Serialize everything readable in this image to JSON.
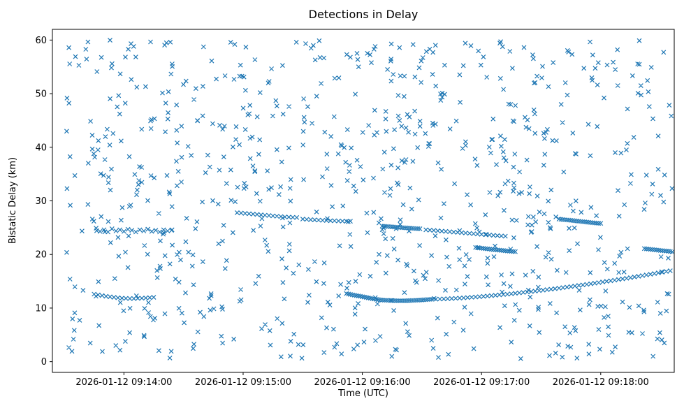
{
  "chart_data": {
    "type": "scatter",
    "title": "Detections in Delay",
    "xlabel": "Time (UTC)",
    "ylabel": "Bistatic Delay (km)",
    "marker": "x",
    "marker_color": "#1f77b4",
    "legend": "none",
    "grid": false,
    "x_axis": {
      "unit": "seconds after 2026-01-12 09:13:00 UTC",
      "lim": [
        24,
        337
      ],
      "ticks": [
        60,
        120,
        180,
        240,
        300
      ],
      "tick_labels": [
        "2026-01-12 09:14:00",
        "2026-01-12 09:15:00",
        "2026-01-12 09:16:00",
        "2026-01-12 09:17:00",
        "2026-01-12 09:18:00"
      ]
    },
    "y_axis": {
      "lim": [
        -2,
        62
      ],
      "ticks": [
        0,
        10,
        20,
        30,
        40,
        50,
        60
      ],
      "tick_labels": [
        "0",
        "10",
        "20",
        "30",
        "40",
        "50",
        "60"
      ]
    },
    "noise": {
      "description": "uniform random clutter detections across the full plot",
      "count": 850,
      "x_range": [
        31,
        336
      ],
      "y_range": [
        0.5,
        60
      ],
      "seed": 7
    },
    "tracks": [
      {
        "name": "track-1",
        "points": [
          [
            45,
            12.6
          ],
          [
            47,
            12.45
          ],
          [
            49,
            12.32
          ],
          [
            51,
            12.2
          ],
          [
            53,
            12.1
          ],
          [
            55,
            12.0
          ],
          [
            57,
            11.92
          ],
          [
            59,
            11.85
          ],
          [
            61,
            11.8
          ],
          [
            63,
            11.78
          ],
          [
            65,
            11.78
          ],
          [
            67,
            11.8
          ],
          [
            69,
            11.84
          ],
          [
            71,
            11.89
          ],
          [
            73,
            11.94
          ],
          [
            75,
            12.0
          ]
        ]
      },
      {
        "name": "cluster-1",
        "points": [
          [
            46,
            24.9
          ],
          [
            48,
            24.3
          ],
          [
            50,
            24.6
          ],
          [
            52,
            24.2
          ],
          [
            54,
            24.8
          ],
          [
            56,
            24.4
          ],
          [
            58,
            24.6
          ],
          [
            60,
            24.3
          ],
          [
            62,
            24.7
          ],
          [
            64,
            24.5
          ],
          [
            66,
            24.2
          ],
          [
            68,
            24.6
          ],
          [
            70,
            24.4
          ],
          [
            72,
            24.7
          ],
          [
            74,
            24.3
          ],
          [
            76,
            24.5
          ],
          [
            78,
            24.2
          ],
          [
            80,
            24.6
          ],
          [
            82,
            24.4
          ],
          [
            84,
            24.5
          ]
        ]
      },
      {
        "name": "track-2",
        "points": [
          [
            117,
            27.8
          ],
          [
            119,
            27.73
          ],
          [
            121,
            27.67
          ],
          [
            123,
            27.6
          ],
          [
            125,
            27.53
          ],
          [
            127,
            27.47
          ],
          [
            129,
            27.4
          ],
          [
            131,
            27.33
          ],
          [
            133,
            27.27
          ],
          [
            135,
            27.2
          ],
          [
            137,
            27.13
          ],
          [
            139,
            27.07
          ],
          [
            141,
            27.0
          ],
          [
            143,
            26.97
          ],
          [
            145,
            26.93
          ],
          [
            147,
            26.9
          ]
        ]
      },
      {
        "name": "track-3",
        "points": [
          [
            150,
            26.6
          ],
          [
            152,
            26.55
          ],
          [
            154,
            26.5
          ],
          [
            156,
            26.46
          ],
          [
            158,
            26.42
          ],
          [
            160,
            26.38
          ],
          [
            162,
            26.34
          ],
          [
            164,
            26.3
          ],
          [
            166,
            26.28
          ],
          [
            168,
            26.25
          ],
          [
            170,
            26.22
          ],
          [
            172,
            26.2
          ],
          [
            174,
            26.2
          ]
        ]
      },
      {
        "name": "track-4",
        "points": [
          [
            190,
            25.3
          ],
          [
            191,
            25.27
          ],
          [
            192,
            25.24
          ],
          [
            193,
            25.21
          ],
          [
            194,
            25.18
          ],
          [
            195,
            25.15
          ],
          [
            196,
            25.12
          ],
          [
            197,
            25.09
          ],
          [
            198,
            25.06
          ],
          [
            199,
            25.03
          ],
          [
            200,
            25.0
          ],
          [
            201,
            24.98
          ],
          [
            202,
            24.95
          ],
          [
            203,
            24.92
          ],
          [
            204,
            24.9
          ],
          [
            205,
            24.88
          ],
          [
            206,
            24.85
          ],
          [
            207,
            24.83
          ],
          [
            208,
            24.81
          ],
          [
            209,
            24.8
          ]
        ]
      },
      {
        "name": "track-5",
        "points": [
          [
            212,
            24.6
          ],
          [
            214,
            24.54
          ],
          [
            216,
            24.48
          ],
          [
            218,
            24.42
          ],
          [
            220,
            24.36
          ],
          [
            222,
            24.3
          ],
          [
            224,
            24.24
          ],
          [
            226,
            24.18
          ],
          [
            228,
            24.12
          ],
          [
            230,
            24.06
          ],
          [
            232,
            24.0
          ],
          [
            234,
            23.94
          ],
          [
            236,
            23.88
          ],
          [
            238,
            23.82
          ],
          [
            240,
            23.76
          ],
          [
            242,
            23.7
          ],
          [
            244,
            23.64
          ],
          [
            246,
            23.58
          ],
          [
            248,
            23.52
          ],
          [
            250,
            23.46
          ],
          [
            252,
            23.4
          ]
        ]
      },
      {
        "name": "track-6",
        "points": [
          [
            237,
            21.3
          ],
          [
            238,
            21.25
          ],
          [
            239,
            21.21
          ],
          [
            240,
            21.17
          ],
          [
            241,
            21.12
          ],
          [
            242,
            21.08
          ],
          [
            243,
            21.04
          ],
          [
            244,
            21.0
          ],
          [
            245,
            20.96
          ],
          [
            246,
            20.92
          ],
          [
            247,
            20.88
          ],
          [
            248,
            20.84
          ],
          [
            249,
            20.8
          ],
          [
            250,
            20.76
          ],
          [
            251,
            20.73
          ],
          [
            252,
            20.69
          ],
          [
            253,
            20.65
          ],
          [
            254,
            20.62
          ],
          [
            255,
            20.58
          ],
          [
            256,
            20.55
          ],
          [
            257,
            20.52
          ]
        ]
      },
      {
        "name": "track-7",
        "points": [
          [
            172,
            12.7
          ],
          [
            173,
            12.62
          ],
          [
            174,
            12.55
          ],
          [
            175,
            12.47
          ],
          [
            176,
            12.4
          ],
          [
            177,
            12.33
          ],
          [
            178,
            12.26
          ],
          [
            179,
            12.19
          ],
          [
            180,
            12.12
          ],
          [
            181,
            12.05
          ],
          [
            182,
            11.98
          ],
          [
            183,
            11.91
          ],
          [
            184,
            11.84
          ],
          [
            185,
            11.77
          ],
          [
            186,
            11.7
          ],
          [
            187,
            11.64
          ],
          [
            188,
            11.58
          ],
          [
            189,
            11.53
          ],
          [
            190,
            11.5
          ],
          [
            191,
            11.47
          ],
          [
            192,
            11.45
          ],
          [
            193,
            11.43
          ],
          [
            194,
            11.41
          ],
          [
            195,
            11.4
          ],
          [
            196,
            11.39
          ],
          [
            197,
            11.38
          ],
          [
            198,
            11.38
          ],
          [
            199,
            11.37
          ],
          [
            200,
            11.37
          ],
          [
            201,
            11.37
          ],
          [
            202,
            11.38
          ],
          [
            203,
            11.39
          ],
          [
            204,
            11.4
          ],
          [
            205,
            11.41
          ],
          [
            206,
            11.43
          ],
          [
            207,
            11.45
          ],
          [
            208,
            11.47
          ],
          [
            209,
            11.49
          ],
          [
            210,
            11.51
          ],
          [
            211,
            11.54
          ],
          [
            212,
            11.56
          ],
          [
            213,
            11.59
          ],
          [
            214,
            11.62
          ],
          [
            215,
            11.65
          ],
          [
            217,
            11.66
          ],
          [
            219,
            11.68
          ],
          [
            221,
            11.71
          ],
          [
            223,
            11.74
          ],
          [
            225,
            11.78
          ],
          [
            227,
            11.82
          ],
          [
            229,
            11.86
          ],
          [
            231,
            11.91
          ],
          [
            233,
            11.96
          ],
          [
            235,
            12.01
          ],
          [
            237,
            12.07
          ],
          [
            239,
            12.12
          ],
          [
            241,
            12.18
          ],
          [
            243,
            12.25
          ],
          [
            245,
            12.31
          ],
          [
            247,
            12.38
          ],
          [
            249,
            12.45
          ],
          [
            251,
            12.52
          ],
          [
            253,
            12.59
          ],
          [
            255,
            12.67
          ],
          [
            257,
            12.75
          ],
          [
            259,
            12.83
          ],
          [
            261,
            12.91
          ],
          [
            263,
            12.99
          ],
          [
            265,
            13.08
          ],
          [
            267,
            13.16
          ],
          [
            269,
            13.25
          ],
          [
            271,
            13.34
          ],
          [
            273,
            13.43
          ],
          [
            275,
            13.52
          ],
          [
            277,
            13.62
          ],
          [
            279,
            13.71
          ],
          [
            281,
            13.81
          ],
          [
            283,
            13.91
          ],
          [
            285,
            14.01
          ],
          [
            287,
            14.11
          ],
          [
            289,
            14.22
          ],
          [
            291,
            14.32
          ],
          [
            293,
            14.43
          ],
          [
            295,
            14.53
          ],
          [
            297,
            14.64
          ],
          [
            299,
            14.75
          ],
          [
            301,
            14.87
          ],
          [
            303,
            14.98
          ],
          [
            305,
            15.09
          ],
          [
            307,
            15.21
          ],
          [
            309,
            15.32
          ],
          [
            311,
            15.44
          ],
          [
            313,
            15.56
          ],
          [
            315,
            15.68
          ],
          [
            317,
            15.8
          ],
          [
            319,
            15.93
          ],
          [
            321,
            16.05
          ],
          [
            323,
            16.18
          ],
          [
            325,
            16.3
          ],
          [
            327,
            16.43
          ],
          [
            329,
            16.56
          ],
          [
            331,
            16.69
          ],
          [
            333,
            16.82
          ],
          [
            335,
            16.95
          ]
        ]
      },
      {
        "name": "track-8",
        "points": [
          [
            279,
            26.6
          ],
          [
            280,
            26.56
          ],
          [
            281,
            26.52
          ],
          [
            282,
            26.48
          ],
          [
            283,
            26.44
          ],
          [
            284,
            26.4
          ],
          [
            285,
            26.36
          ],
          [
            286,
            26.32
          ],
          [
            287,
            26.28
          ],
          [
            288,
            26.24
          ],
          [
            289,
            26.2
          ],
          [
            290,
            26.16
          ],
          [
            291,
            26.12
          ],
          [
            292,
            26.08
          ],
          [
            293,
            26.04
          ],
          [
            294,
            26.0
          ],
          [
            295,
            25.96
          ],
          [
            296,
            25.92
          ],
          [
            297,
            25.88
          ],
          [
            298,
            25.84
          ],
          [
            299,
            25.8
          ],
          [
            300,
            25.8
          ]
        ]
      },
      {
        "name": "track-9",
        "points": [
          [
            322,
            21.1
          ],
          [
            323,
            21.05
          ],
          [
            324,
            21.0
          ],
          [
            325,
            20.96
          ],
          [
            326,
            20.92
          ],
          [
            327,
            20.88
          ],
          [
            328,
            20.84
          ],
          [
            329,
            20.8
          ],
          [
            330,
            20.76
          ],
          [
            331,
            20.72
          ],
          [
            332,
            20.68
          ],
          [
            333,
            20.64
          ],
          [
            334,
            20.6
          ],
          [
            335,
            20.55
          ],
          [
            336,
            20.5
          ]
        ]
      }
    ]
  }
}
